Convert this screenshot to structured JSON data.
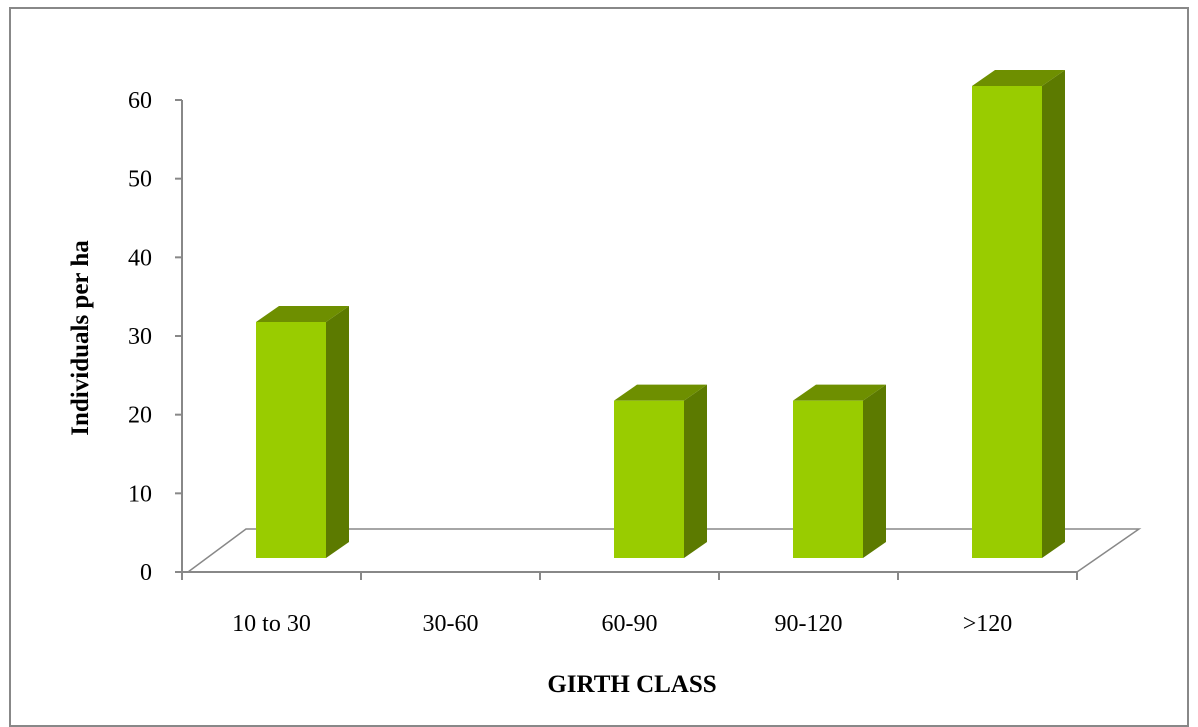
{
  "chart_data": {
    "type": "bar",
    "categories": [
      "10 to 30",
      "30-60",
      "60-90",
      "90-120",
      ">120"
    ],
    "values": [
      30,
      0,
      20,
      20,
      60
    ],
    "title": "",
    "xlabel": "GIRTH CLASS",
    "ylabel": "Individuals per ha",
    "ylim": [
      0,
      60
    ],
    "yticks": [
      "0",
      "10",
      "20",
      "30",
      "40",
      "50",
      "60"
    ],
    "grid": false,
    "legend": "none",
    "style": "3d-column",
    "colors": {
      "bar_front": "#99cc00",
      "bar_side": "#5c7a00",
      "bar_top": "#6e8f00",
      "axis": "#888888",
      "frame": "#888888"
    }
  }
}
